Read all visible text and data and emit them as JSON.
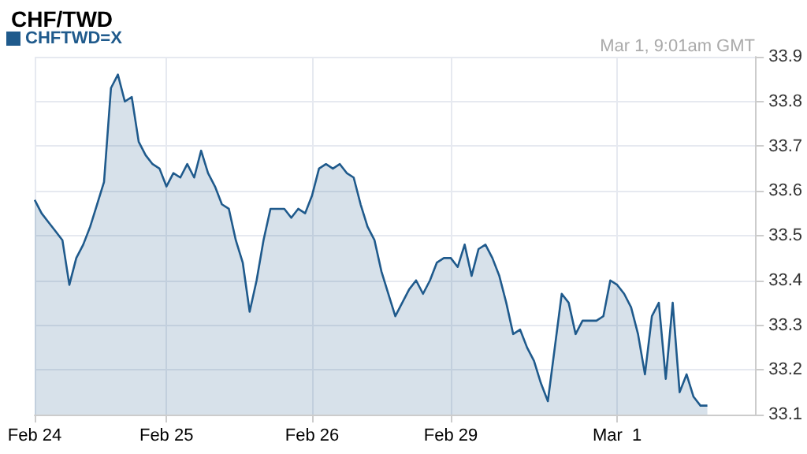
{
  "chart_data": {
    "type": "area",
    "title": "CHF/TWD",
    "subtitle": "Mar 1, 9:01am GMT",
    "categories": [
      "Feb 24",
      null,
      null,
      null,
      null,
      null,
      null,
      null,
      null,
      null,
      null,
      null,
      null,
      null,
      null,
      null,
      null,
      null,
      null,
      "Feb 25",
      null,
      null,
      null,
      null,
      null,
      null,
      null,
      null,
      null,
      null,
      null,
      null,
      null,
      null,
      null,
      null,
      null,
      null,
      null,
      null,
      "Feb 26",
      null,
      null,
      null,
      null,
      null,
      null,
      null,
      null,
      null,
      null,
      null,
      null,
      null,
      null,
      null,
      null,
      null,
      null,
      null,
      "Feb 29",
      null,
      null,
      null,
      null,
      null,
      null,
      null,
      null,
      null,
      null,
      null,
      null,
      null,
      null,
      null,
      null,
      null,
      null,
      null,
      null,
      null,
      null,
      null,
      "Mar  1",
      null,
      null,
      null,
      null,
      null,
      null,
      null,
      null,
      null,
      null,
      null,
      null,
      null,
      null,
      null,
      null,
      null,
      null,
      null,
      null
    ],
    "series": [
      {
        "name": "CHFTWD=X",
        "color": "#1f5a8c",
        "values": [
          33.58,
          33.55,
          33.53,
          33.51,
          33.49,
          33.39,
          33.45,
          33.48,
          33.52,
          33.57,
          33.62,
          33.83,
          33.86,
          33.8,
          33.81,
          33.71,
          33.68,
          33.66,
          33.65,
          33.61,
          33.64,
          33.63,
          33.66,
          33.63,
          33.69,
          33.64,
          33.61,
          33.57,
          33.56,
          33.49,
          33.44,
          33.33,
          33.4,
          33.49,
          33.56,
          33.56,
          33.56,
          33.54,
          33.56,
          33.55,
          33.59,
          33.65,
          33.66,
          33.65,
          33.66,
          33.64,
          33.63,
          33.57,
          33.52,
          33.49,
          33.42,
          33.37,
          33.32,
          33.35,
          33.38,
          33.4,
          33.37,
          33.4,
          33.44,
          33.45,
          33.45,
          33.43,
          33.48,
          33.41,
          33.47,
          33.48,
          33.45,
          33.41,
          33.35,
          33.28,
          33.29,
          33.25,
          33.22,
          33.17,
          33.13,
          33.25,
          33.37,
          33.35,
          33.28,
          33.31,
          33.31,
          33.31,
          33.32,
          33.4,
          33.39,
          33.37,
          33.34,
          33.28,
          33.19,
          33.32,
          33.35,
          33.18,
          33.35,
          33.15,
          33.19,
          33.14,
          33.12,
          33.12,
          null,
          null,
          null,
          null,
          null,
          null,
          null
        ]
      }
    ],
    "ylim": [
      33.1,
      33.9
    ],
    "yticks": [
      33.1,
      33.2,
      33.3,
      33.4,
      33.5,
      33.6,
      33.7,
      33.8,
      33.9
    ],
    "grid": true,
    "legend": "top left",
    "marker": "none"
  }
}
